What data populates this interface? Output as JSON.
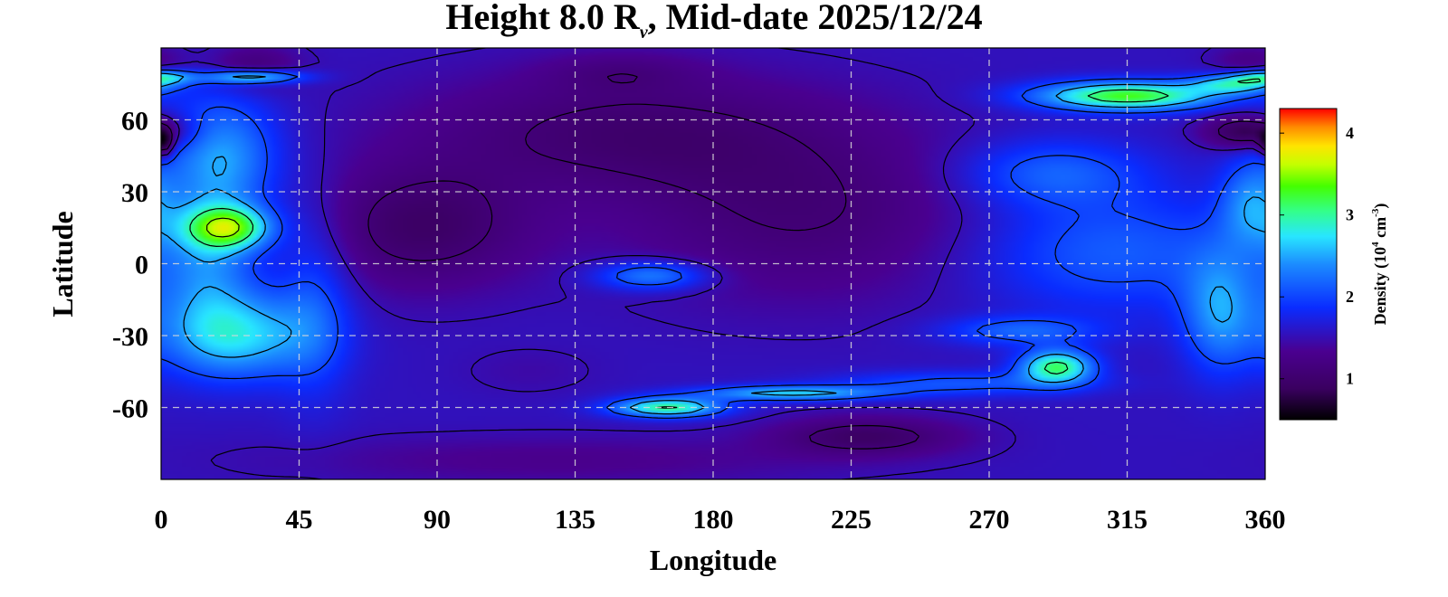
{
  "chart_data": {
    "type": "heatmap",
    "title": {
      "prefix": "Height 8.0 R",
      "subscript": "v",
      "suffix": ", Mid-date 2025/12/24"
    },
    "xlabel": "Longitude",
    "ylabel": "Latitude",
    "xlim": [
      0,
      360
    ],
    "ylim": [
      -90,
      90
    ],
    "xticks": [
      0,
      45,
      90,
      135,
      180,
      225,
      270,
      315,
      360
    ],
    "yticks": [
      60,
      30,
      0,
      -30,
      -60
    ],
    "xtick_labels": [
      "0",
      "45",
      "90",
      "135",
      "180",
      "225",
      "270",
      "315",
      "360"
    ],
    "ytick_labels": [
      "60",
      "30",
      "0",
      "-30",
      "-60"
    ],
    "grid": true,
    "colorbar": {
      "label_prefix": "Density (10",
      "label_exp1": "4",
      "label_mid": " cm",
      "label_exp2": "-3",
      "label_suffix": ")",
      "range": [
        0.5,
        4.3
      ],
      "ticks": [
        1,
        2,
        3,
        4
      ],
      "tick_labels": [
        "1",
        "2",
        "3",
        "4"
      ],
      "colormap": [
        [
          0.0,
          "#000000"
        ],
        [
          0.1,
          "#3a0060"
        ],
        [
          0.22,
          "#4a0090"
        ],
        [
          0.36,
          "#0a2cff"
        ],
        [
          0.5,
          "#1c8cff"
        ],
        [
          0.59,
          "#28e6ff"
        ],
        [
          0.67,
          "#33ff8a"
        ],
        [
          0.75,
          "#44ff00"
        ],
        [
          0.82,
          "#c4ff00"
        ],
        [
          0.88,
          "#ffe400"
        ],
        [
          0.94,
          "#ff8c00"
        ],
        [
          1.0,
          "#ff0000"
        ]
      ]
    },
    "contour_levels": [
      1.1,
      1.5,
      2.0,
      2.5,
      3.0,
      3.5
    ],
    "background_level": 1.55,
    "features": [
      {
        "lon": 30,
        "lat": 82,
        "slon": 14,
        "slat": 9,
        "amp": -0.45
      },
      {
        "lon": 1,
        "lat": 50,
        "slon": 3,
        "slat": 6,
        "amp": -0.85
      },
      {
        "lon": 30,
        "lat": 78,
        "slon": 16,
        "slat": 3,
        "amp": 1.3
      },
      {
        "lon": 0,
        "lat": 78,
        "slon": 10,
        "slat": 3,
        "amp": 1.0
      },
      {
        "lon": 20,
        "lat": 45,
        "slon": 18,
        "slat": 25,
        "amp": 0.9
      },
      {
        "lon": 22,
        "lat": 15,
        "slon": 14,
        "slat": 9,
        "amp": 1.5
      },
      {
        "lon": 15,
        "lat": 0,
        "slon": 16,
        "slat": 30,
        "amp": 0.7
      },
      {
        "lon": 25,
        "lat": -30,
        "slon": 25,
        "slat": 18,
        "amp": 1.1
      },
      {
        "lon": 50,
        "lat": -15,
        "slon": 12,
        "slat": 40,
        "amp": 0.45
      },
      {
        "lon": 85,
        "lat": 15,
        "slon": 35,
        "slat": 25,
        "amp": -0.6
      },
      {
        "lon": 150,
        "lat": 55,
        "slon": 70,
        "slat": 25,
        "amp": -0.5
      },
      {
        "lon": 210,
        "lat": 20,
        "slon": 60,
        "slat": 35,
        "amp": -0.45
      },
      {
        "lon": 160,
        "lat": -5,
        "slon": 18,
        "slat": 6,
        "amp": 0.85
      },
      {
        "lon": 150,
        "lat": 80,
        "slon": 25,
        "slat": 8,
        "amp": -0.25
      },
      {
        "lon": 120,
        "lat": -45,
        "slon": 22,
        "slat": 10,
        "amp": -0.1
      },
      {
        "lon": 230,
        "lat": -72,
        "slon": 30,
        "slat": 8,
        "amp": -0.6
      },
      {
        "lon": 130,
        "lat": -82,
        "slon": 90,
        "slat": 10,
        "amp": -0.25
      },
      {
        "lon": 165,
        "lat": -60,
        "slon": 18,
        "slat": 4,
        "amp": 1.5
      },
      {
        "lon": 205,
        "lat": -54,
        "slon": 30,
        "slat": 3,
        "amp": 1.1
      },
      {
        "lon": 260,
        "lat": -50,
        "slon": 40,
        "slat": 5,
        "amp": 0.55
      },
      {
        "lon": 292,
        "lat": -43,
        "slon": 12,
        "slat": 7,
        "amp": 1.55
      },
      {
        "lon": 280,
        "lat": -28,
        "slon": 25,
        "slat": 6,
        "amp": 0.6
      },
      {
        "lon": 310,
        "lat": 5,
        "slon": 45,
        "slat": 25,
        "amp": 0.6
      },
      {
        "lon": 345,
        "lat": -20,
        "slon": 12,
        "slat": 25,
        "amp": 0.8
      },
      {
        "lon": 355,
        "lat": 25,
        "slon": 10,
        "slat": 18,
        "amp": 0.7
      },
      {
        "lon": 290,
        "lat": 38,
        "slon": 30,
        "slat": 14,
        "amp": 0.6
      },
      {
        "lon": 315,
        "lat": 70,
        "slon": 30,
        "slat": 6,
        "amp": 1.75
      },
      {
        "lon": 350,
        "lat": 75,
        "slon": 14,
        "slat": 4,
        "amp": 1.1
      },
      {
        "lon": 355,
        "lat": 55,
        "slon": 14,
        "slat": 7,
        "amp": -0.85
      },
      {
        "lon": 355,
        "lat": 85,
        "slon": 12,
        "slat": 6,
        "amp": -0.3
      }
    ]
  }
}
